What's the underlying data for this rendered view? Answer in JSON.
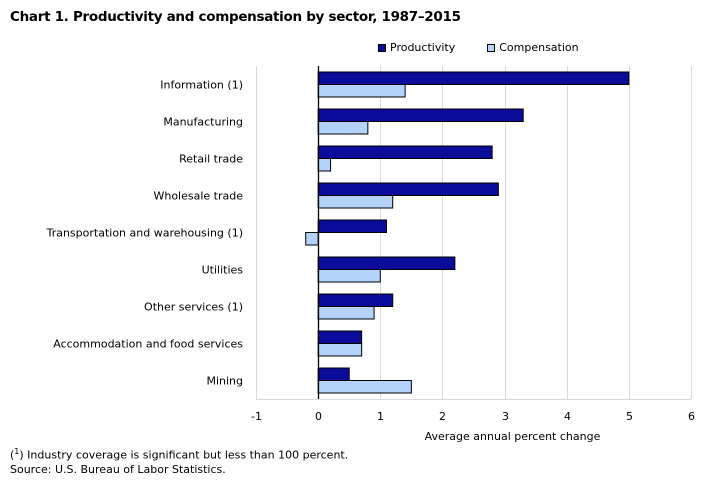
{
  "chart_data": {
    "type": "bar",
    "orientation": "horizontal",
    "title": "Chart 1. Productivity and compensation by sector, 1987–2015",
    "categories": [
      "Information (1)",
      "Manufacturing",
      "Retail trade",
      "Wholesale trade",
      "Transportation and warehousing (1)",
      "Utilities",
      "Other services (1)",
      "Accommodation and food services",
      "Mining"
    ],
    "series": [
      {
        "name": "Productivity",
        "color": "#0c0c9a",
        "values": [
          5.0,
          3.3,
          2.8,
          2.9,
          1.1,
          2.2,
          1.2,
          0.7,
          0.5
        ]
      },
      {
        "name": "Compensation",
        "color": "#b3d3fb",
        "values": [
          1.4,
          0.8,
          0.2,
          1.2,
          -0.2,
          1.0,
          0.9,
          0.7,
          1.5
        ]
      }
    ],
    "xlabel": "Average annual percent change",
    "ylabel": "",
    "xlim": [
      -1,
      6
    ],
    "xticks": [
      "-1",
      "0",
      "1",
      "2",
      "3",
      "4",
      "5",
      "6"
    ],
    "grid": true,
    "legend_position": "top-right"
  },
  "footnotes": {
    "note_marker": "1",
    "note_text": " Industry coverage is significant but less than 100 percent.",
    "source": "Source: U.S. Bureau of Labor Statistics."
  }
}
